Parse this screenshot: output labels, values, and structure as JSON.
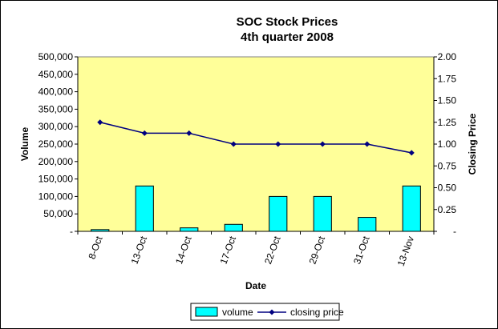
{
  "chart_data": {
    "type": "bar+line",
    "title": "SOC Stock Prices",
    "subtitle": "4th quarter 2008",
    "xlabel": "Date",
    "ylabel_left": "Volume",
    "ylabel_right": "Closing Price",
    "categories": [
      "8-Oct",
      "13-Oct",
      "14-Oct",
      "17-Oct",
      "22-Oct",
      "29-Oct",
      "31-Oct",
      "13-Nov"
    ],
    "series": [
      {
        "name": "volume",
        "type": "bar",
        "axis": "left",
        "color": "#00FFFF",
        "values": [
          5000,
          130000,
          10000,
          20000,
          100000,
          100000,
          40000,
          130000
        ]
      },
      {
        "name": "closing price",
        "type": "line",
        "axis": "right",
        "color": "#000080",
        "values": [
          1.25,
          1.125,
          1.125,
          1.0,
          1.0,
          1.0,
          1.0,
          0.9
        ]
      }
    ],
    "ylim_left": [
      0,
      500000
    ],
    "ylim_right": [
      0,
      2.0
    ],
    "yticks_left": [
      "-",
      "50,000",
      "100,000",
      "150,000",
      "200,000",
      "250,000",
      "300,000",
      "350,000",
      "400,000",
      "450,000",
      "500,000"
    ],
    "yticks_right": [
      "-",
      "0.25",
      "0.50",
      "0.75",
      "1.00",
      "1.25",
      "1.50",
      "1.75",
      "2.00"
    ],
    "plot_background": "#FFFF99",
    "grid": false,
    "legend_position": "bottom"
  }
}
